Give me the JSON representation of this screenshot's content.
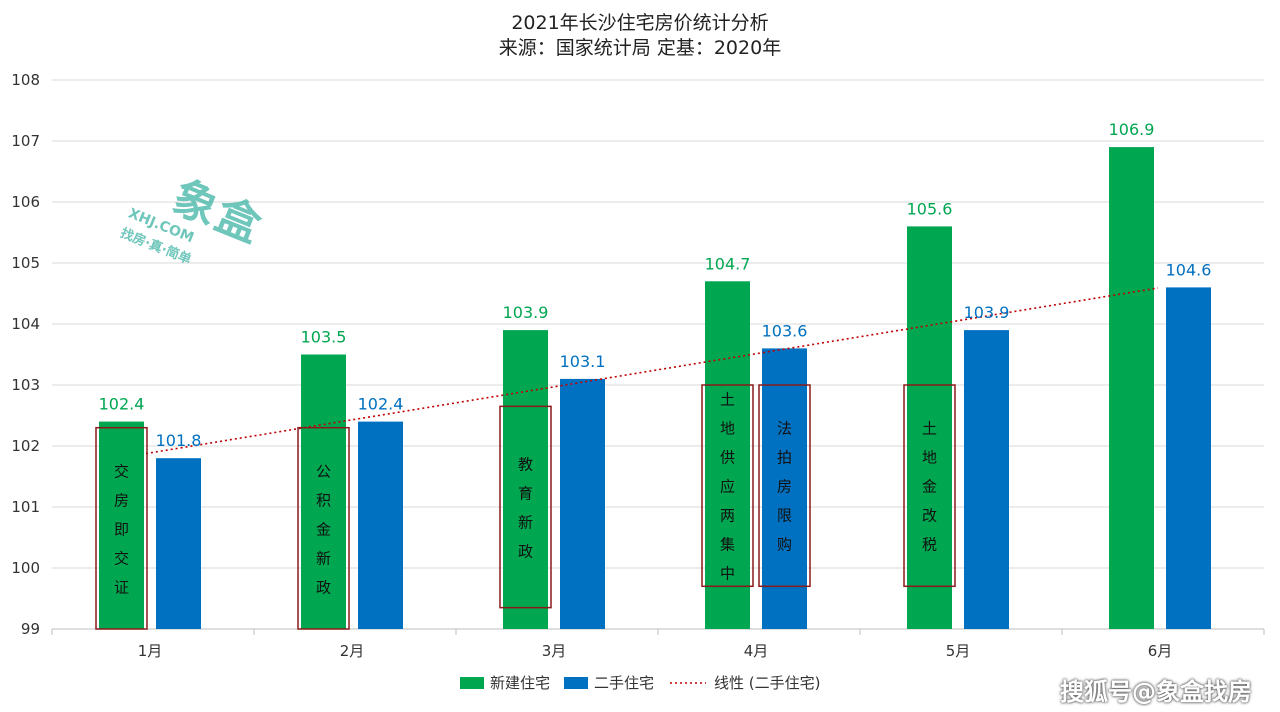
{
  "chart_data": {
    "type": "bar",
    "title": "2021年长沙住宅房价统计分析",
    "subtitle": "来源：国家统计局 定基：2020年",
    "categories": [
      "1月",
      "2月",
      "3月",
      "4月",
      "5月",
      "6月"
    ],
    "series": [
      {
        "name": "新建住宅",
        "values": [
          102.4,
          103.5,
          103.9,
          104.7,
          105.6,
          106.9
        ],
        "color": "#00a650"
      },
      {
        "name": "二手住宅",
        "values": [
          101.8,
          102.4,
          103.1,
          103.6,
          103.9,
          104.6
        ],
        "color": "#0070c0"
      }
    ],
    "trendline": {
      "name": "线性 (二手住宅)",
      "of_series": "二手住宅",
      "color": "#c00000"
    },
    "ylim": [
      99,
      108
    ],
    "yticks": [
      99,
      100,
      101,
      102,
      103,
      104,
      105,
      106,
      107,
      108
    ],
    "grid": true,
    "legend": "bottom",
    "annotations": [
      {
        "category": "1月",
        "series": "新建住宅",
        "text": "交房即交证",
        "from": 99,
        "to": 102.3
      },
      {
        "category": "2月",
        "series": "新建住宅",
        "text": "公积金新政",
        "from": 99,
        "to": 102.3
      },
      {
        "category": "3月",
        "series": "新建住宅",
        "text": "教育新政",
        "from": 99.35,
        "to": 102.65
      },
      {
        "category": "4月",
        "series": "新建住宅",
        "text": "土地供应两集中",
        "from": 99.7,
        "to": 103.0
      },
      {
        "category": "4月",
        "series": "二手住宅",
        "text": "法拍房限购",
        "from": 99.7,
        "to": 103.0
      },
      {
        "category": "5月",
        "series": "新建住宅",
        "text": "土地金改税",
        "from": 99.7,
        "to": 103.0
      }
    ]
  },
  "watermark": {
    "logo_big": "象盒",
    "logo_url": "XHJ.COM",
    "logo_slogan": "找房·真·简单",
    "brand": "搜狐号@象盒找房"
  },
  "colors": {
    "grid": "#d9d9d9",
    "axis": "#bfbfbf",
    "annotation_border": "#8b1a1a"
  }
}
